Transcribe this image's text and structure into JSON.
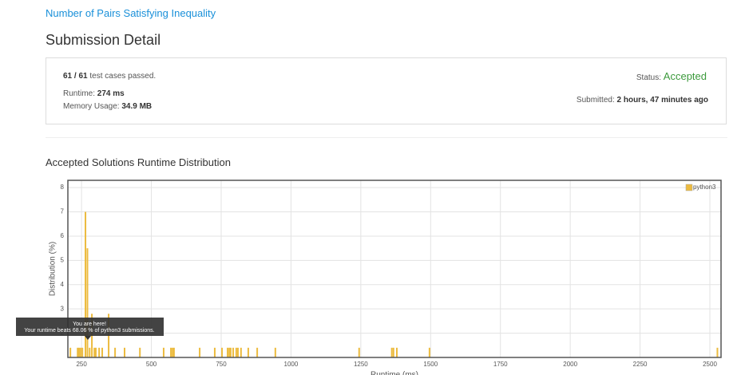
{
  "header": {
    "problem_title": "Number of Pairs Satisfying Inequality",
    "heading": "Submission Detail"
  },
  "detail": {
    "testcases_passed": "61 / 61",
    "testcases_label": "test cases passed.",
    "runtime_label": "Runtime:",
    "runtime": "274 ms",
    "memory_label": "Memory Usage:",
    "memory": "34.9 MB",
    "status_label": "Status:",
    "status": "Accepted",
    "submitted_label": "Submitted:",
    "submitted": "2 hours, 47 minutes ago"
  },
  "chart_data": {
    "type": "bar",
    "title": "Accepted Solutions Runtime Distribution",
    "xlabel": "Runtime (ms)",
    "ylabel": "Distribution (%)",
    "x": [
      210,
      236,
      241,
      247,
      253,
      264,
      271,
      279,
      287,
      296,
      301,
      313,
      324,
      347,
      370,
      404,
      459,
      544,
      570,
      576,
      581,
      673,
      727,
      753,
      773,
      779,
      784,
      793,
      804,
      810,
      821,
      847,
      879,
      944,
      1244,
      1361,
      1367,
      1379,
      1496,
      2527
    ],
    "series": [
      {
        "name": "python3",
        "color": "#ecbb3f",
        "values": [
          1.4,
          1.4,
          1.4,
          1.4,
          1.4,
          7,
          5.5,
          1.4,
          2.8,
          1.4,
          1.4,
          1.4,
          1.4,
          2.8,
          1.4,
          1.4,
          1.4,
          1.4,
          1.4,
          1.4,
          1.4,
          1.4,
          1.4,
          1.4,
          1.4,
          1.4,
          1.4,
          1.4,
          1.4,
          1.4,
          1.4,
          1.4,
          1.4,
          1.4,
          1.4,
          1.4,
          1.4,
          1.4,
          1.4,
          1.4
        ]
      }
    ],
    "xlim": [
      201,
      2540
    ],
    "xticks": [
      250,
      500,
      750,
      1000,
      1250,
      1500,
      1750,
      2000,
      2250,
      2500
    ],
    "ylim": [
      1,
      8.3
    ],
    "yticks": [
      2,
      3,
      4,
      5,
      6,
      7,
      8
    ],
    "grid": true,
    "legend": "top-right",
    "annotations": [
      "You are here!",
      "Your runtime beats 68.06 % of python3 submissions."
    ]
  }
}
